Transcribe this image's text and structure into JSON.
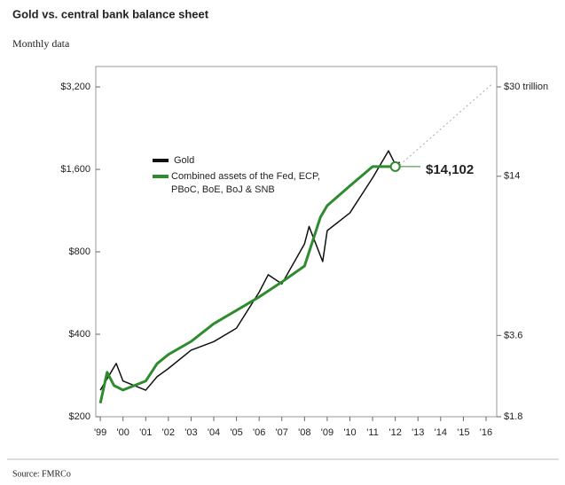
{
  "chart_data": {
    "type": "line",
    "title": "Gold vs. central bank balance sheet",
    "subtitle": "Monthly data",
    "source": "Source: FMRCo",
    "annotation": "$14,102",
    "log_scale": true,
    "xlim": [
      1998.8,
      2016.47
    ],
    "xticks": [
      {
        "value": 1999,
        "label": "'99"
      },
      {
        "value": 2000,
        "label": "'00"
      },
      {
        "value": 2001,
        "label": "'01"
      },
      {
        "value": 2002,
        "label": "'02"
      },
      {
        "value": 2003,
        "label": "'03"
      },
      {
        "value": 2004,
        "label": "'04"
      },
      {
        "value": 2005,
        "label": "'05"
      },
      {
        "value": 2006,
        "label": "'06"
      },
      {
        "value": 2007,
        "label": "'07"
      },
      {
        "value": 2008,
        "label": "'08"
      },
      {
        "value": 2009,
        "label": "'09"
      },
      {
        "value": 2010,
        "label": "'10"
      },
      {
        "value": 2011,
        "label": "'11"
      },
      {
        "value": 2012,
        "label": "'12"
      },
      {
        "value": 2013,
        "label": "'13"
      },
      {
        "value": 2014,
        "label": "'14"
      },
      {
        "value": 2015,
        "label": "'15"
      },
      {
        "value": 2016,
        "label": "'16"
      }
    ],
    "ylim": [
      200,
      3800
    ],
    "yticks": [
      {
        "value": 200,
        "label": "$200"
      },
      {
        "value": 400,
        "label": "$400"
      },
      {
        "value": 800,
        "label": "$800"
      },
      {
        "value": 1600,
        "label": "$1,600"
      },
      {
        "value": 3200,
        "label": "$3,200"
      }
    ],
    "y2lim": [
      1.8,
      35.7
    ],
    "y2ticks": [
      {
        "value": 1.8,
        "label": "$1.8"
      },
      {
        "value": 3.6,
        "label": "$3.6"
      },
      {
        "value": 14,
        "label": "$14"
      },
      {
        "value": 30,
        "label": "$30 trillion"
      }
    ],
    "series": [
      {
        "name": "Gold",
        "color": "#111111",
        "x": [
          1999,
          1999.7,
          2000,
          2001,
          2001.5,
          2002,
          2003,
          2004,
          2005,
          2006,
          2006.4,
          2007,
          2008,
          2008.2,
          2008.8,
          2009,
          2010,
          2011,
          2011.7,
          2012,
          2012.2
        ],
        "values": [
          250,
          313,
          270,
          250,
          280,
          300,
          350,
          376,
          421,
          570,
          660,
          611,
          856,
          990,
          737,
          956,
          1110,
          1490,
          1870,
          1670,
          1700
        ]
      },
      {
        "name": "Combined assets of the Fed, ECP, PBoC, BoE, BoJ & SNB",
        "color": "#2e8b2e",
        "axis": "y2",
        "x": [
          1999,
          1999.3,
          1999.6,
          2000,
          2001,
          2001.5,
          2002,
          2003,
          2004,
          2005,
          2006,
          2007,
          2008,
          2008.7,
          2009,
          2010,
          2011,
          2012
        ],
        "values": [
          2.02,
          2.63,
          2.35,
          2.26,
          2.44,
          2.83,
          3.06,
          3.42,
          3.98,
          4.46,
          5.0,
          5.68,
          6.51,
          9.87,
          10.9,
          12.9,
          15.2,
          15.2
        ]
      },
      {
        "color": "#aaaaaa",
        "style": "dotted",
        "x": [
          2012.2,
          2016.3
        ],
        "values": [
          1660,
          3300
        ]
      }
    ]
  }
}
